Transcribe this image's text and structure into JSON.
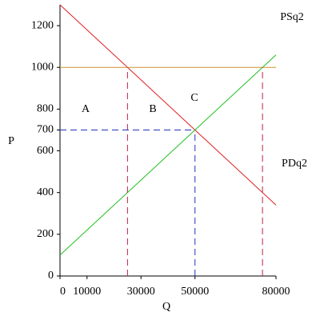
{
  "chart_data": {
    "type": "line",
    "x_label": "Q",
    "y_label": "P",
    "xlim": [
      0,
      80000
    ],
    "ylim": [
      0,
      1300
    ],
    "xticks": [
      0,
      10000,
      30000,
      50000,
      80000
    ],
    "yticks": [
      0,
      200,
      400,
      600,
      700,
      800,
      1000,
      1200
    ],
    "series": [
      {
        "color": "#e02020",
        "dash": false,
        "x": [
          0,
          80000
        ],
        "values": [
          1300,
          340
        ]
      },
      {
        "color": "#20c020",
        "dash": false,
        "x": [
          0,
          80000
        ],
        "values": [
          100,
          1060
        ]
      },
      {
        "color": "#d09030",
        "dash": false,
        "x": [
          0,
          80000
        ],
        "values": [
          1000,
          1000
        ]
      },
      {
        "color": "#c02040",
        "dash": true,
        "x": [
          25000,
          25000
        ],
        "values": [
          0,
          1000
        ]
      },
      {
        "color": "#c02040",
        "dash": true,
        "x": [
          75000,
          75000
        ],
        "values": [
          0,
          1000
        ]
      },
      {
        "color": "#2030c0",
        "dash": true,
        "x": [
          50000,
          50000
        ],
        "values": [
          0,
          700
        ]
      },
      {
        "color": "#2030c0",
        "dash": true,
        "x": [
          0,
          50000
        ],
        "values": [
          700,
          700
        ]
      }
    ],
    "annotations": [
      "A",
      "B",
      "C",
      "PSq2",
      "PDq2"
    ]
  }
}
